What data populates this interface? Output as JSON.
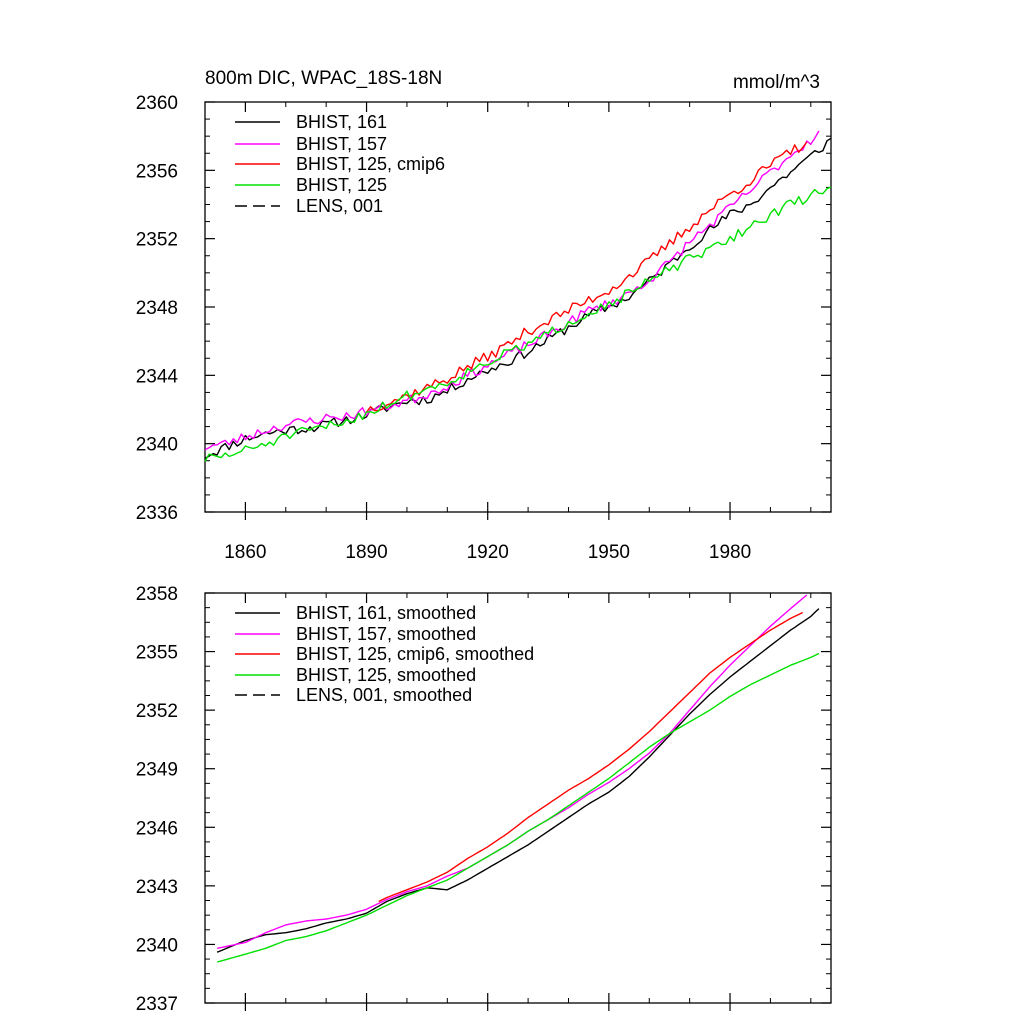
{
  "chart_data": [
    {
      "type": "line",
      "title": "800m DIC, WPAC_18S-18N",
      "units": "mmol/m^3",
      "xlim": [
        1850,
        2005
      ],
      "ylim": [
        2336,
        2360
      ],
      "x_ticks": [
        1860,
        1890,
        1920,
        1950,
        1980
      ],
      "y_ticks": [
        2336,
        2340,
        2344,
        2348,
        2352,
        2356,
        2360
      ],
      "x_tick_labels": [
        "1860",
        "1890",
        "1920",
        "1950",
        "1980"
      ],
      "y_tick_labels": [
        "2336",
        "2340",
        "2344",
        "2348",
        "2352",
        "2356",
        "2360"
      ],
      "legend_position": "top-left",
      "grid": false,
      "series": [
        {
          "name": "BHIST, 161",
          "color": "#000000",
          "dash": "solid",
          "x": [
            1850,
            1855,
            1860,
            1865,
            1870,
            1875,
            1880,
            1885,
            1890,
            1895,
            1900,
            1905,
            1910,
            1915,
            1920,
            1925,
            1930,
            1935,
            1940,
            1945,
            1950,
            1955,
            1960,
            1965,
            1970,
            1975,
            1980,
            1985,
            1990,
            1995,
            2000,
            2005
          ],
          "y": [
            2339.3,
            2339.8,
            2340.3,
            2340.6,
            2340.8,
            2340.9,
            2341.1,
            2341.4,
            2341.7,
            2342.1,
            2342.5,
            2342.6,
            2343.1,
            2343.8,
            2344.3,
            2344.8,
            2345.4,
            2346.1,
            2346.8,
            2347.5,
            2348.0,
            2348.6,
            2349.5,
            2350.5,
            2351.6,
            2352.5,
            2353.4,
            2354.0,
            2355.0,
            2355.9,
            2356.8,
            2357.8
          ],
          "noise": 0.3,
          "seed": 11
        },
        {
          "name": "BHIST, 157",
          "color": "#ff00ff",
          "dash": "solid",
          "x": [
            1850,
            1855,
            1860,
            1865,
            1870,
            1875,
            1880,
            1885,
            1890,
            1895,
            1900,
            1905,
            1910,
            1915,
            1920,
            1925,
            1930,
            1935,
            1940,
            1945,
            1950,
            1955,
            1960,
            1965,
            1970,
            1975,
            1980,
            1985,
            1990,
            1995,
            2000,
            2002
          ],
          "y": [
            2339.8,
            2340.0,
            2340.4,
            2340.8,
            2341.1,
            2341.3,
            2341.5,
            2341.6,
            2341.9,
            2342.2,
            2342.5,
            2342.9,
            2343.4,
            2344.0,
            2344.6,
            2345.2,
            2345.8,
            2346.4,
            2347.1,
            2347.8,
            2348.2,
            2348.8,
            2349.6,
            2350.6,
            2351.8,
            2352.8,
            2353.8,
            2354.8,
            2355.9,
            2356.9,
            2357.8,
            2358.2
          ],
          "noise": 0.3,
          "seed": 23
        },
        {
          "name": "BHIST, 125, cmip6",
          "color": "#ff0000",
          "dash": "solid",
          "x": [
            1890,
            1895,
            1900,
            1905,
            1910,
            1915,
            1920,
            1925,
            1930,
            1935,
            1940,
            1945,
            1950,
            1955,
            1960,
            1965,
            1970,
            1975,
            1980,
            1985,
            1990,
            1995,
            1999
          ],
          "y": [
            2342.0,
            2342.4,
            2342.8,
            2343.3,
            2343.8,
            2344.5,
            2345.1,
            2345.8,
            2346.6,
            2347.2,
            2347.8,
            2348.4,
            2349.0,
            2349.8,
            2350.7,
            2351.7,
            2352.7,
            2353.7,
            2354.6,
            2355.4,
            2356.3,
            2357.1,
            2357.6
          ],
          "noise": 0.32,
          "seed": 37
        },
        {
          "name": "BHIST, 125",
          "color": "#00e000",
          "dash": "solid",
          "x": [
            1850,
            1855,
            1860,
            1865,
            1870,
            1875,
            1880,
            1885,
            1890,
            1895,
            1900,
            1905,
            1910,
            1915,
            1920,
            1925,
            1930,
            1935,
            1940,
            1945,
            1950,
            1955,
            1960,
            1965,
            1970,
            1975,
            1980,
            1985,
            1990,
            1995,
            2000,
            2005
          ],
          "y": [
            2339.1,
            2339.3,
            2339.6,
            2340.0,
            2340.4,
            2340.7,
            2341.0,
            2341.3,
            2341.8,
            2342.3,
            2342.8,
            2343.2,
            2343.6,
            2344.2,
            2344.8,
            2345.3,
            2345.8,
            2346.4,
            2347.1,
            2347.7,
            2348.2,
            2348.8,
            2349.5,
            2350.2,
            2350.8,
            2351.3,
            2352.0,
            2352.7,
            2353.4,
            2354.0,
            2354.5,
            2355.1
          ],
          "noise": 0.3,
          "seed": 51
        },
        {
          "name": "LENS, 001",
          "color": "#000000",
          "dash": "dashed",
          "x": [],
          "y": []
        }
      ]
    },
    {
      "type": "line",
      "title": "",
      "units": "",
      "xlim": [
        1850,
        2005
      ],
      "ylim": [
        2337,
        2358
      ],
      "x_ticks": [
        1860,
        1890,
        1920,
        1950,
        1980
      ],
      "y_ticks": [
        2337,
        2340,
        2343,
        2346,
        2349,
        2352,
        2355,
        2358
      ],
      "x_tick_labels": [],
      "y_tick_labels": [
        "2337",
        "2340",
        "2343",
        "2346",
        "2349",
        "2352",
        "2355",
        "2358"
      ],
      "legend_position": "top-left",
      "grid": false,
      "series": [
        {
          "name": "BHIST, 161, smoothed",
          "color": "#000000",
          "dash": "solid",
          "x": [
            1853,
            1860,
            1865,
            1870,
            1875,
            1880,
            1885,
            1890,
            1895,
            1900,
            1905,
            1910,
            1915,
            1920,
            1925,
            1930,
            1935,
            1940,
            1945,
            1950,
            1955,
            1960,
            1965,
            1970,
            1975,
            1980,
            1985,
            1990,
            1995,
            2000,
            2002
          ],
          "y": [
            2339.6,
            2340.2,
            2340.5,
            2340.6,
            2340.8,
            2341.1,
            2341.3,
            2341.6,
            2342.2,
            2342.6,
            2342.9,
            2342.8,
            2343.3,
            2343.9,
            2344.5,
            2345.1,
            2345.8,
            2346.5,
            2347.2,
            2347.8,
            2348.6,
            2349.6,
            2350.7,
            2351.8,
            2352.8,
            2353.7,
            2354.5,
            2355.3,
            2356.1,
            2356.8,
            2357.2
          ],
          "noise": 0,
          "seed": 0
        },
        {
          "name": "BHIST, 157, smoothed",
          "color": "#ff00ff",
          "dash": "solid",
          "x": [
            1853,
            1860,
            1865,
            1870,
            1875,
            1880,
            1885,
            1890,
            1895,
            1900,
            1905,
            1910,
            1915,
            1920,
            1925,
            1930,
            1935,
            1940,
            1945,
            1950,
            1955,
            1960,
            1965,
            1970,
            1975,
            1980,
            1985,
            1990,
            1995,
            1999
          ],
          "y": [
            2339.8,
            2340.1,
            2340.6,
            2341.0,
            2341.2,
            2341.3,
            2341.5,
            2341.8,
            2342.3,
            2342.7,
            2343.0,
            2343.5,
            2343.9,
            2344.5,
            2345.1,
            2345.8,
            2346.4,
            2347.0,
            2347.7,
            2348.3,
            2349.0,
            2349.8,
            2350.8,
            2352.0,
            2353.2,
            2354.3,
            2355.3,
            2356.3,
            2357.2,
            2357.9
          ],
          "noise": 0,
          "seed": 0
        },
        {
          "name": "BHIST, 125, cmip6, smoothed",
          "color": "#ff0000",
          "dash": "solid",
          "x": [
            1893,
            1895,
            1900,
            1905,
            1910,
            1915,
            1920,
            1925,
            1930,
            1935,
            1940,
            1945,
            1950,
            1955,
            1960,
            1965,
            1970,
            1975,
            1980,
            1985,
            1990,
            1995,
            1998
          ],
          "y": [
            2342.2,
            2342.4,
            2342.8,
            2343.2,
            2343.7,
            2344.4,
            2345.0,
            2345.7,
            2346.5,
            2347.2,
            2347.9,
            2348.5,
            2349.2,
            2350.0,
            2350.9,
            2351.9,
            2352.9,
            2353.9,
            2354.7,
            2355.4,
            2356.1,
            2356.7,
            2357.0
          ],
          "noise": 0,
          "seed": 0
        },
        {
          "name": "BHIST, 125, smoothed",
          "color": "#00e000",
          "dash": "solid",
          "x": [
            1853,
            1860,
            1865,
            1870,
            1875,
            1880,
            1885,
            1890,
            1895,
            1900,
            1905,
            1910,
            1915,
            1920,
            1925,
            1930,
            1935,
            1940,
            1945,
            1950,
            1955,
            1960,
            1965,
            1970,
            1975,
            1980,
            1985,
            1990,
            1995,
            2000,
            2002
          ],
          "y": [
            2339.1,
            2339.5,
            2339.8,
            2340.2,
            2340.4,
            2340.7,
            2341.1,
            2341.5,
            2342.0,
            2342.5,
            2342.9,
            2343.3,
            2343.9,
            2344.5,
            2345.1,
            2345.8,
            2346.4,
            2347.1,
            2347.8,
            2348.5,
            2349.3,
            2350.1,
            2350.8,
            2351.4,
            2352.0,
            2352.7,
            2353.3,
            2353.8,
            2354.3,
            2354.7,
            2354.9
          ],
          "noise": 0,
          "seed": 0
        },
        {
          "name": "LENS, 001, smoothed",
          "color": "#000000",
          "dash": "dashed",
          "x": [],
          "y": []
        }
      ]
    }
  ]
}
